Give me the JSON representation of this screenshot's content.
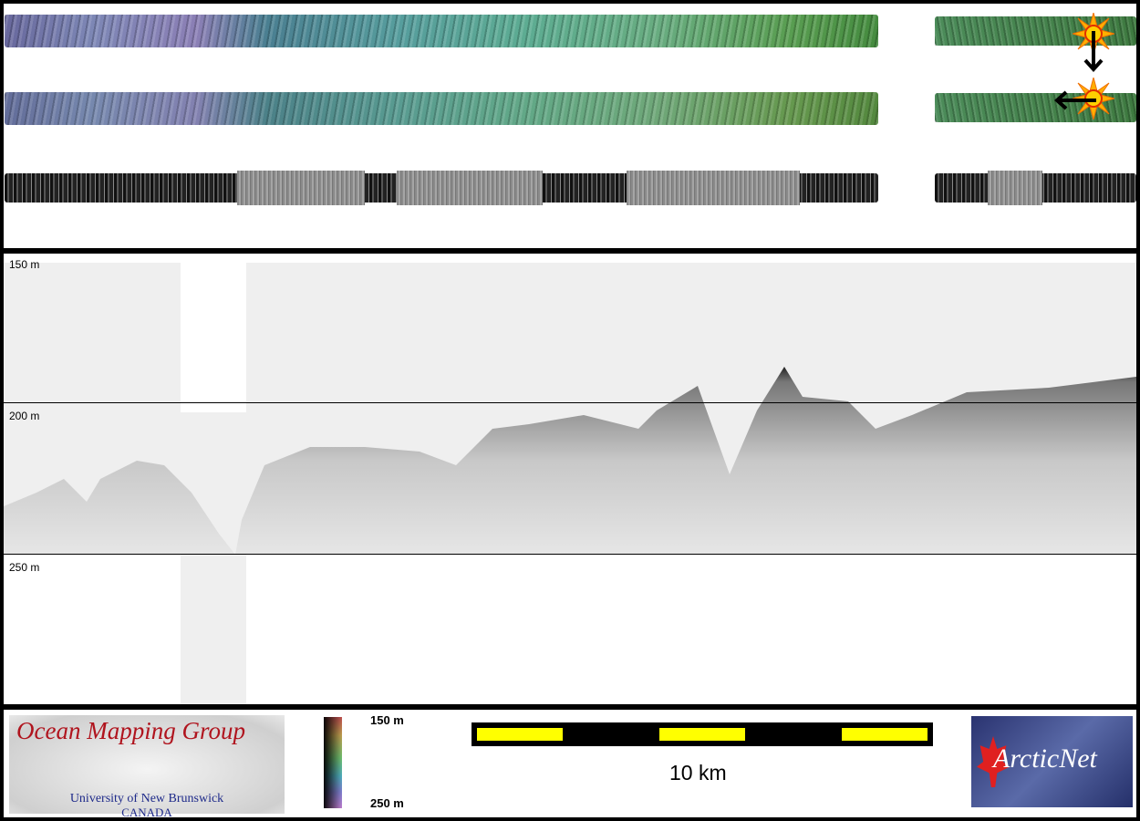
{
  "depth_labels": [
    "150 m",
    "200 m",
    "250 m"
  ],
  "logo_omg": {
    "title": "Ocean Mapping Group",
    "line1": "University of New Brunswick",
    "line2": "CANADA"
  },
  "colorbar": {
    "top_label": "150 m",
    "bottom_label": "250 m"
  },
  "scale_bar": {
    "label": "10 km",
    "colors": {
      "fill": "#ffff00",
      "bar": "#000000"
    }
  },
  "logo_arcticnet": {
    "text": "ArcticNet"
  },
  "icons": [
    "sun-icon",
    "arrow-down-icon",
    "arrow-left-icon"
  ]
}
